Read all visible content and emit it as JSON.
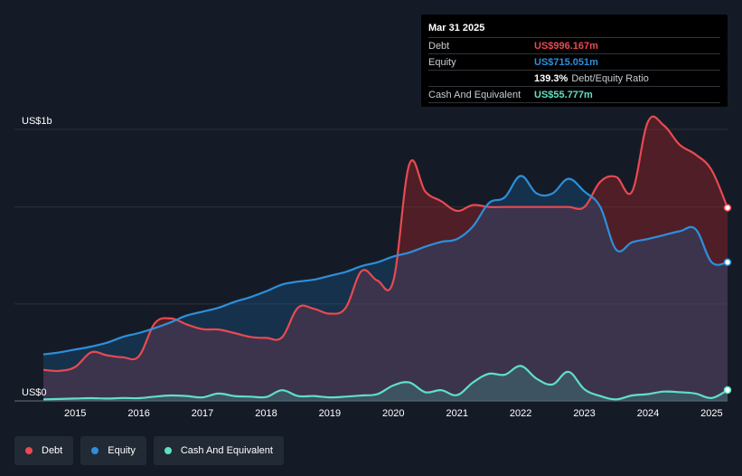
{
  "colors": {
    "debt": "#e84a50",
    "equity": "#2d8fdb",
    "cash": "#5fe0c6",
    "background": "#151b26",
    "grid": "#2c323d",
    "axis_text": "#ffffff"
  },
  "tooltip": {
    "date": "Mar 31 2025",
    "debt_label": "Debt",
    "debt_value": "US$996.167m",
    "equity_label": "Equity",
    "equity_value": "US$715.051m",
    "ratio_value": "139.3%",
    "ratio_label": "Debt/Equity Ratio",
    "cash_label": "Cash And Equivalent",
    "cash_value": "US$55.777m"
  },
  "legend": {
    "debt": "Debt",
    "equity": "Equity",
    "cash": "Cash And Equivalent"
  },
  "chart_data": {
    "type": "area",
    "title": "",
    "xlabel": "",
    "ylabel": "",
    "units": "US$ millions",
    "ylim": [
      0,
      1400
    ],
    "xlim": [
      2014.5,
      2025.25
    ],
    "y_axis_labels": [
      {
        "value": 1400,
        "label": "US$1b"
      },
      {
        "value": 0,
        "label": "US$0"
      }
    ],
    "gridlines": [
      0,
      500,
      1000,
      1400
    ],
    "x_ticks": [
      2015,
      2016,
      2017,
      2018,
      2019,
      2020,
      2021,
      2022,
      2023,
      2024,
      2025
    ],
    "x_tick_labels": [
      "2015",
      "2016",
      "2017",
      "2018",
      "2019",
      "2020",
      "2021",
      "2022",
      "2023",
      "2024",
      "2025"
    ],
    "series": [
      {
        "name": "Debt",
        "x": [
          2014.5,
          2014.75,
          2015.0,
          2015.25,
          2015.5,
          2015.75,
          2016.0,
          2016.25,
          2016.5,
          2016.75,
          2017.0,
          2017.25,
          2017.5,
          2017.75,
          2018.0,
          2018.25,
          2018.5,
          2018.75,
          2019.0,
          2019.25,
          2019.5,
          2019.75,
          2020.0,
          2020.25,
          2020.5,
          2020.75,
          2021.0,
          2021.25,
          2021.5,
          2021.75,
          2022.0,
          2022.25,
          2022.5,
          2022.75,
          2023.0,
          2023.25,
          2023.5,
          2023.75,
          2024.0,
          2024.25,
          2024.5,
          2024.75,
          2025.0,
          2025.25
        ],
        "values": [
          160,
          155,
          175,
          250,
          235,
          225,
          230,
          400,
          425,
          395,
          370,
          368,
          350,
          330,
          325,
          328,
          480,
          475,
          450,
          480,
          670,
          620,
          620,
          1220,
          1080,
          1030,
          980,
          1010,
          1000,
          1000,
          1000,
          1000,
          1000,
          1000,
          1000,
          1130,
          1155,
          1080,
          1440,
          1420,
          1320,
          1270,
          1190,
          996
        ]
      },
      {
        "name": "Equity",
        "x": [
          2014.5,
          2014.75,
          2015.0,
          2015.25,
          2015.5,
          2015.75,
          2016.0,
          2016.25,
          2016.5,
          2016.75,
          2017.0,
          2017.25,
          2017.5,
          2017.75,
          2018.0,
          2018.25,
          2018.5,
          2018.75,
          2019.0,
          2019.25,
          2019.5,
          2019.75,
          2020.0,
          2020.25,
          2020.5,
          2020.75,
          2021.0,
          2021.25,
          2021.5,
          2021.75,
          2022.0,
          2022.25,
          2022.5,
          2022.75,
          2023.0,
          2023.25,
          2023.5,
          2023.75,
          2024.0,
          2024.25,
          2024.5,
          2024.75,
          2025.0,
          2025.25
        ],
        "values": [
          240,
          250,
          265,
          280,
          300,
          330,
          350,
          375,
          405,
          440,
          460,
          480,
          510,
          535,
          565,
          600,
          615,
          625,
          645,
          665,
          695,
          715,
          745,
          765,
          795,
          820,
          835,
          900,
          1020,
          1050,
          1160,
          1070,
          1070,
          1145,
          1080,
          1000,
          780,
          818,
          835,
          855,
          875,
          885,
          715,
          715
        ]
      },
      {
        "name": "Cash And Equivalent",
        "x": [
          2014.5,
          2014.75,
          2015.0,
          2015.25,
          2015.5,
          2015.75,
          2016.0,
          2016.25,
          2016.5,
          2016.75,
          2017.0,
          2017.25,
          2017.5,
          2017.75,
          2018.0,
          2018.25,
          2018.5,
          2018.75,
          2019.0,
          2019.25,
          2019.5,
          2019.75,
          2020.0,
          2020.25,
          2020.5,
          2020.75,
          2021.0,
          2021.25,
          2021.5,
          2021.75,
          2022.0,
          2022.25,
          2022.5,
          2022.75,
          2023.0,
          2023.25,
          2023.5,
          2023.75,
          2024.0,
          2024.25,
          2024.5,
          2024.75,
          2025.0,
          2025.25
        ],
        "values": [
          8,
          10,
          12,
          14,
          12,
          15,
          14,
          22,
          28,
          25,
          18,
          38,
          25,
          22,
          20,
          55,
          25,
          25,
          18,
          22,
          28,
          35,
          80,
          95,
          45,
          55,
          30,
          95,
          140,
          135,
          180,
          115,
          85,
          150,
          60,
          25,
          8,
          28,
          35,
          48,
          45,
          38,
          15,
          56
        ]
      }
    ]
  }
}
